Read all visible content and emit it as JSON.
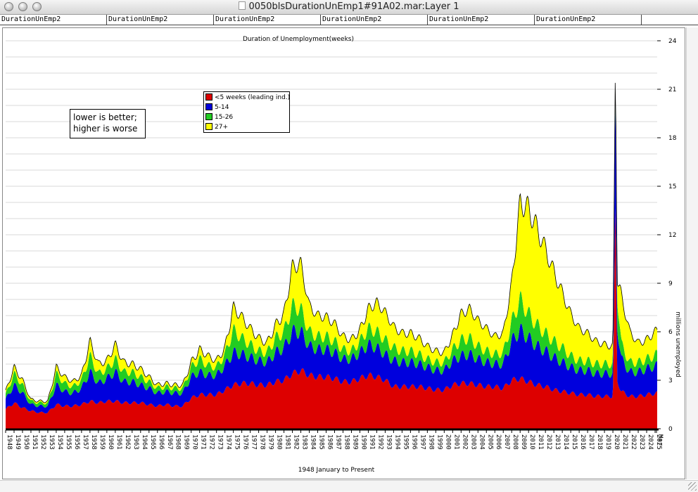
{
  "window": {
    "title": "0050blsDurationUnEmp1#91A02.mar:Layer 1"
  },
  "tabs": [
    "DurationUnEmp2",
    "DurationUnEmp2",
    "DurationUnEmp2",
    "DurationUnEmp2",
    "DurationUnEmp2",
    "DurationUnEmp2"
  ],
  "note": {
    "line1": "lower is better;",
    "line2": "higher is worse"
  },
  "colors": {
    "lt5": "#dd0000",
    "w5_14": "#0000dd",
    "w15_26": "#22cc22",
    "w27plus": "#ffff00",
    "outline": "#000000"
  },
  "chart_data": {
    "type": "area",
    "stacked": true,
    "title": "Duration of Unemployment(weeks)",
    "xlabel": "1948 January to Present",
    "ylabel": "millions unemployed",
    "ylim": [
      0,
      24
    ],
    "yticks": [
      0,
      3,
      6,
      9,
      12,
      15,
      18,
      21,
      24
    ],
    "grid": true,
    "legend_position": "top-left",
    "x_tick_labels": [
      "1948",
      "1949",
      "1950",
      "1951",
      "1952",
      "1953",
      "1954",
      "1955",
      "1956",
      "1957",
      "1958",
      "1959",
      "1960",
      "1961",
      "1962",
      "1963",
      "1964",
      "1965",
      "1966",
      "1967",
      "1968",
      "1969",
      "1970",
      "1971",
      "1972",
      "1973",
      "1974",
      "1975",
      "1976",
      "1977",
      "1978",
      "1979",
      "1980",
      "1981",
      "1982",
      "1983",
      "1984",
      "1985",
      "1986",
      "1987",
      "1988",
      "1989",
      "1990",
      "1991",
      "1992",
      "1993",
      "1994",
      "1995",
      "1996",
      "1997",
      "1998",
      "1999",
      "2000",
      "2001",
      "2002",
      "2003",
      "2004",
      "2005",
      "2006",
      "2007",
      "2008",
      "2009",
      "2010",
      "2011",
      "2012",
      "2013",
      "2014",
      "2015",
      "2016",
      "2017",
      "2018",
      "2019",
      "2020",
      "2021",
      "2022",
      "2023",
      "2024",
      "2025",
      "Mar"
    ],
    "x": [
      "1948",
      "1949",
      "1950",
      "1951",
      "1952",
      "1953",
      "1954",
      "1955",
      "1956",
      "1957",
      "1958",
      "1959",
      "1960",
      "1961",
      "1962",
      "1963",
      "1964",
      "1965",
      "1966",
      "1967",
      "1968",
      "1969",
      "1970",
      "1971",
      "1972",
      "1973",
      "1974",
      "1975",
      "1976",
      "1977",
      "1978",
      "1979",
      "1980",
      "1981",
      "1982",
      "1983",
      "1984",
      "1985",
      "1986",
      "1987",
      "1988",
      "1989",
      "1990",
      "1991",
      "1992",
      "1993",
      "1994",
      "1995",
      "1996",
      "1997",
      "1998",
      "1999",
      "2000",
      "2001",
      "2002",
      "2003",
      "2004",
      "2005",
      "2006",
      "2007",
      "2008",
      "2009",
      "2010",
      "2011",
      "2012",
      "2013",
      "2014",
      "2015",
      "2016",
      "2017",
      "2018",
      "2019",
      "2020",
      "2020.3",
      "2020.5",
      "2021",
      "2022",
      "2023",
      "2024",
      "2025.2"
    ],
    "series": [
      {
        "name": "<5 weeks (leading ind.)",
        "color": "#dd0000",
        "values": [
          1.2,
          1.6,
          1.3,
          1.1,
          1.0,
          1.0,
          1.5,
          1.4,
          1.4,
          1.5,
          1.7,
          1.6,
          1.7,
          1.7,
          1.6,
          1.6,
          1.6,
          1.5,
          1.4,
          1.5,
          1.4,
          1.4,
          1.9,
          2.1,
          2.1,
          2.1,
          2.4,
          2.7,
          2.8,
          2.8,
          2.7,
          2.7,
          2.9,
          3.0,
          3.4,
          3.6,
          3.3,
          3.2,
          3.2,
          3.1,
          2.9,
          2.9,
          3.1,
          3.3,
          3.2,
          3.0,
          2.6,
          2.6,
          2.6,
          2.6,
          2.5,
          2.4,
          2.4,
          2.7,
          2.8,
          2.8,
          2.7,
          2.6,
          2.6,
          2.5,
          3.0,
          3.1,
          2.9,
          2.7,
          2.6,
          2.4,
          2.3,
          2.2,
          2.1,
          2.1,
          2.0,
          2.0,
          2.0,
          14.0,
          3.0,
          2.3,
          2.0,
          2.0,
          2.1,
          2.2
        ]
      },
      {
        "name": "5-14",
        "color": "#0000dd",
        "values": [
          0.6,
          1.1,
          0.9,
          0.4,
          0.4,
          0.4,
          1.2,
          0.9,
          0.8,
          1.0,
          1.8,
          1.2,
          1.4,
          1.8,
          1.3,
          1.3,
          1.1,
          1.0,
          0.8,
          0.8,
          0.8,
          0.8,
          1.3,
          1.4,
          1.2,
          1.2,
          1.5,
          2.0,
          1.8,
          1.6,
          1.5,
          1.4,
          1.8,
          2.0,
          2.6,
          2.4,
          1.8,
          1.7,
          1.7,
          1.6,
          1.4,
          1.4,
          1.6,
          1.9,
          1.8,
          1.6,
          1.6,
          1.5,
          1.5,
          1.4,
          1.3,
          1.2,
          1.2,
          1.5,
          1.7,
          1.8,
          1.6,
          1.5,
          1.4,
          1.5,
          2.4,
          3.0,
          2.7,
          2.4,
          2.2,
          2.0,
          1.8,
          1.6,
          1.5,
          1.5,
          1.4,
          1.4,
          1.4,
          7.0,
          3.5,
          2.0,
          1.5,
          1.5,
          1.6,
          1.7
        ]
      },
      {
        "name": "15-26",
        "color": "#22cc22",
        "values": [
          0.3,
          0.7,
          0.5,
          0.2,
          0.2,
          0.2,
          0.7,
          0.5,
          0.4,
          0.5,
          1.0,
          0.6,
          0.6,
          0.8,
          0.6,
          0.6,
          0.5,
          0.4,
          0.3,
          0.3,
          0.3,
          0.3,
          0.6,
          0.8,
          0.6,
          0.5,
          0.7,
          1.4,
          1.0,
          0.8,
          0.6,
          0.6,
          0.9,
          1.0,
          1.6,
          1.4,
          0.9,
          0.8,
          0.8,
          0.7,
          0.6,
          0.5,
          0.7,
          1.0,
          1.0,
          0.9,
          0.8,
          0.7,
          0.7,
          0.6,
          0.5,
          0.5,
          0.5,
          0.7,
          1.0,
          1.0,
          0.8,
          0.7,
          0.6,
          0.7,
          1.2,
          1.9,
          1.5,
          1.3,
          1.1,
          1.0,
          0.9,
          0.7,
          0.6,
          0.6,
          0.6,
          0.6,
          0.6,
          0.5,
          2.0,
          0.9,
          0.6,
          0.6,
          0.6,
          0.7
        ]
      },
      {
        "name": "27+",
        "color": "#ffff00",
        "values": [
          0.2,
          0.4,
          0.3,
          0.1,
          0.1,
          0.1,
          0.4,
          0.4,
          0.3,
          0.3,
          0.9,
          0.6,
          0.5,
          0.9,
          0.6,
          0.5,
          0.5,
          0.3,
          0.2,
          0.2,
          0.2,
          0.2,
          0.3,
          0.6,
          0.6,
          0.4,
          0.4,
          1.4,
          1.3,
          1.0,
          0.8,
          0.6,
          0.8,
          1.1,
          2.4,
          2.8,
          1.6,
          1.3,
          1.2,
          1.1,
          0.8,
          0.7,
          0.7,
          1.2,
          1.8,
          1.7,
          1.3,
          1.1,
          1.1,
          1.0,
          0.8,
          0.7,
          0.6,
          0.9,
          1.6,
          1.8,
          1.6,
          1.4,
          1.1,
          1.2,
          2.4,
          6.0,
          6.5,
          6.0,
          5.2,
          4.3,
          3.4,
          2.6,
          2.0,
          1.7,
          1.4,
          1.2,
          1.1,
          0.5,
          1.1,
          3.0,
          1.9,
          1.2,
          1.2,
          1.5
        ]
      }
    ]
  }
}
